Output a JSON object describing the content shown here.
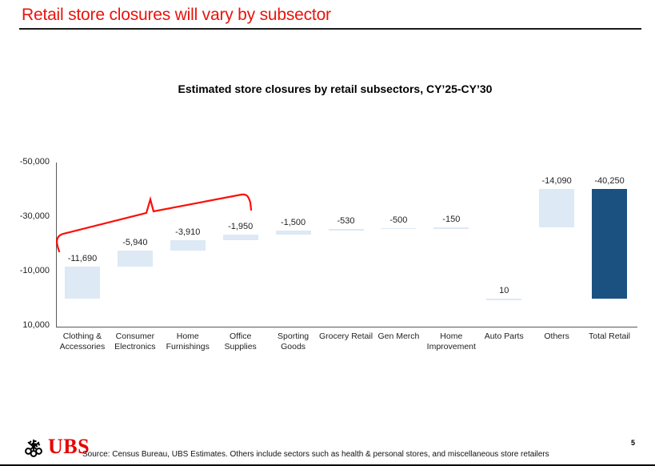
{
  "header": {
    "title": "Retail store closures will vary by subsector"
  },
  "chart_data": {
    "type": "bar",
    "subtype": "waterfall",
    "title": "Estimated store closures by retail subsectors, CY’25-CY’30",
    "categories": [
      "Clothing & Accessories",
      "Consumer Electronics",
      "Home Furnishings",
      "Office Supplies",
      "Sporting Goods",
      "Grocery Retail",
      "Gen Merch",
      "Home Improvement",
      "Auto Parts",
      "Others",
      "Total Retail"
    ],
    "category_label_lines": [
      [
        "Clothing &",
        "Accessories"
      ],
      [
        "Consumer",
        "Electronics"
      ],
      [
        "Home",
        "Furnishings"
      ],
      [
        "Office",
        "Supplies"
      ],
      [
        "Sporting",
        "Goods"
      ],
      [
        "Grocery Retail"
      ],
      [
        "Gen Merch"
      ],
      [
        "Home",
        "Improvement"
      ],
      [
        "Auto Parts"
      ],
      [
        "Others"
      ],
      [
        "Total Retail"
      ]
    ],
    "values": [
      -11690,
      -5940,
      -3910,
      -1950,
      -1500,
      -530,
      -500,
      -150,
      10,
      -14090,
      -40250
    ],
    "data_labels": [
      "-11,690",
      "-5,940",
      "-3,910",
      "-1,950",
      "-1,500",
      "-530",
      "-500",
      "-150",
      "10",
      "-14,090",
      "-40,250"
    ],
    "cumulative": [
      -11690,
      -17630,
      -21540,
      -23490,
      -24990,
      -25520,
      -26020,
      -26170,
      -26160,
      -40250,
      -40250
    ],
    "total_index": 10,
    "baseline_anchored_indices": [
      8,
      10
    ],
    "colors": {
      "bar": "#dde9f5",
      "total_bar": "#1a5180",
      "annotation": "#fa0f08",
      "axis": "#595959"
    },
    "y_axis": {
      "min": -50000,
      "max": 10000,
      "inverted": true,
      "grid": false,
      "tick_values": [
        -50000,
        -30000,
        -10000,
        10000
      ],
      "tick_labels": [
        "-50,000",
        "-30,000",
        "-10,000",
        "10,000"
      ]
    },
    "annotation": {
      "type": "curly-brace",
      "spans_categories": [
        "Clothing & Accessories",
        "Office Supplies"
      ],
      "color": "#fa0f08"
    }
  },
  "footer": {
    "logo": "UBS",
    "logo_icon": "ubs-three-keys-icon",
    "source_note": "Source: Census Bureau, UBS Estimates. Others include sectors such as health & personal stores, and miscellaneous store retailers",
    "page_number": "5"
  }
}
